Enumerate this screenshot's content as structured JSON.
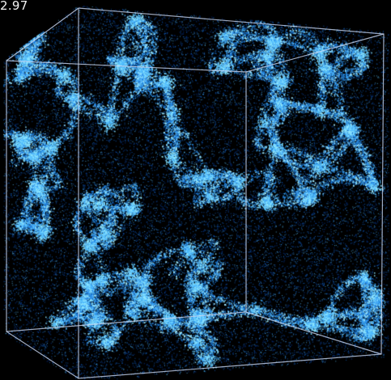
{
  "redshift_label": "2.97",
  "colors": {
    "background": "#000000",
    "filament_dark": "#06348f",
    "filament_mid": "#1a7fe6",
    "filament_bright": "#8fe8ff",
    "box_edges": "#c8d6f0"
  }
}
